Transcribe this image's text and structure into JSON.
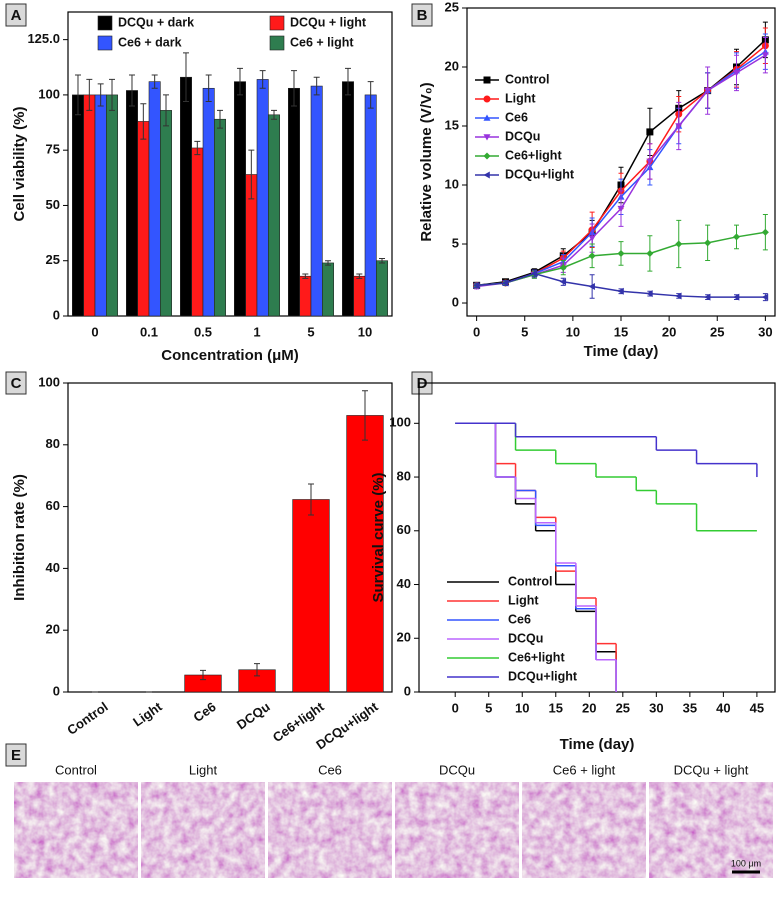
{
  "chart_data": [
    {
      "panel_label": "A",
      "type": "bar",
      "xlabel": "Concentration (μM)",
      "ylabel": "Cell viability (%)",
      "categories": [
        "0",
        "0.1",
        "0.5",
        "1",
        "5",
        "10"
      ],
      "series": [
        {
          "name": "DCQu + dark",
          "color": "#000000",
          "values": [
            100,
            102,
            108,
            106,
            103,
            106
          ],
          "errors": [
            9,
            7,
            11,
            6,
            8,
            6
          ]
        },
        {
          "name": "DCQu + light",
          "color": "#ff1a1a",
          "values": [
            100,
            88,
            76,
            64,
            18,
            18
          ],
          "errors": [
            7,
            8,
            3,
            11,
            1,
            1
          ]
        },
        {
          "name": "Ce6 + dark",
          "color": "#3355ff",
          "values": [
            100,
            106,
            103,
            107,
            104,
            100
          ],
          "errors": [
            5,
            3,
            6,
            4,
            4,
            6
          ]
        },
        {
          "name": "Ce6 + light",
          "color": "#2e7d4f",
          "values": [
            100,
            93,
            89,
            91,
            24,
            25
          ],
          "errors": [
            7,
            7,
            4,
            2,
            1,
            1
          ]
        }
      ],
      "ylim": [
        0,
        137.5
      ],
      "yticks": [
        0,
        25,
        50,
        75,
        100,
        {
          "value": 125,
          "label": "125.0"
        }
      ],
      "legend": "upper center"
    },
    {
      "panel_label": "B",
      "type": "line",
      "xlabel": "Time (day)",
      "ylabel": "Relative volume (V/V₀)",
      "x": [
        0,
        3,
        6,
        9,
        12,
        15,
        18,
        21,
        24,
        27,
        30
      ],
      "series": [
        {
          "name": "Control",
          "color": "#000000",
          "marker": "square",
          "values": [
            1.5,
            1.8,
            2.6,
            4,
            6,
            10,
            14.5,
            16.5,
            18,
            20,
            22.3
          ],
          "errors": [
            0.2,
            0.2,
            0.3,
            0.6,
            1,
            1.5,
            2,
            1.5,
            1.5,
            1.5,
            1.5
          ]
        },
        {
          "name": "Light",
          "color": "#ff1a1a",
          "marker": "circle",
          "values": [
            1.5,
            1.7,
            2.5,
            3.8,
            6.2,
            9.5,
            12,
            16,
            18,
            19.8,
            21.8
          ],
          "errors": [
            0.2,
            0.2,
            0.3,
            0.6,
            1.5,
            1.5,
            1.5,
            1.5,
            1.5,
            1.5,
            1.5
          ]
        },
        {
          "name": "Ce6",
          "color": "#3355ff",
          "marker": "triangle-up",
          "values": [
            1.5,
            1.7,
            2.5,
            3.5,
            6,
            9,
            11.5,
            15,
            18,
            19.7,
            21.3
          ],
          "errors": [
            0.2,
            0.2,
            0.3,
            0.6,
            1.2,
            1.5,
            1.5,
            1.5,
            1.5,
            1.5,
            1.5
          ]
        },
        {
          "name": "DCQu",
          "color": "#9933dd",
          "marker": "triangle-down",
          "values": [
            1.4,
            1.7,
            2.4,
            3.2,
            5.5,
            8,
            12,
            15,
            18,
            19.5,
            21
          ],
          "errors": [
            0.2,
            0.2,
            0.3,
            0.6,
            1.2,
            1.5,
            1.5,
            2,
            2,
            1.5,
            1.5
          ]
        },
        {
          "name": "Ce6+light",
          "color": "#33aa33",
          "marker": "diamond",
          "values": [
            1.5,
            1.7,
            2.4,
            3,
            4,
            4.2,
            4.2,
            5,
            5.1,
            5.6,
            6
          ],
          "errors": [
            0.2,
            0.2,
            0.3,
            0.6,
            1,
            1,
            1.5,
            2,
            1.5,
            1,
            1.5
          ]
        },
        {
          "name": "DCQu+light",
          "color": "#3333aa",
          "marker": "triangle-left",
          "values": [
            1.5,
            1.7,
            2.5,
            1.8,
            1.4,
            1,
            0.8,
            0.6,
            0.5,
            0.5,
            0.5
          ],
          "errors": [
            0.2,
            0.2,
            0.3,
            0.3,
            1,
            0.2,
            0.2,
            0.2,
            0.2,
            0.2,
            0.3
          ]
        }
      ],
      "xlim": [
        -1,
        31
      ],
      "xticks": [
        0,
        5,
        10,
        15,
        20,
        25,
        30
      ],
      "ylim": [
        -1.1,
        25
      ],
      "yticks": [
        0,
        5,
        10,
        15,
        20,
        25
      ],
      "legend": "upper left"
    },
    {
      "panel_label": "C",
      "type": "bar",
      "ylabel": "Inhibition rate (%)",
      "categories": [
        "Control",
        "Light",
        "Ce6",
        "DCQu",
        "Ce6+light",
        "DCQu+light"
      ],
      "values": [
        0,
        0,
        5.5,
        7.2,
        62.3,
        89.5
      ],
      "errors": [
        0,
        0,
        1.5,
        2,
        5,
        8
      ],
      "color": "#ff0000",
      "ylim": [
        0,
        100
      ],
      "yticks": [
        0,
        20,
        40,
        60,
        80,
        100
      ]
    },
    {
      "panel_label": "D",
      "type": "step",
      "xlabel": "Time (day)",
      "ylabel": "Survival curve (%)",
      "series": [
        {
          "name": "Control",
          "color": "#000000",
          "x": [
            0,
            6,
            9,
            12,
            15,
            18,
            21,
            24
          ],
          "values": [
            100,
            80,
            70,
            60,
            40,
            30,
            15,
            0
          ]
        },
        {
          "name": "Light",
          "color": "#ff3333",
          "x": [
            0,
            6,
            9,
            12,
            15,
            18,
            21,
            24
          ],
          "values": [
            100,
            85,
            75,
            65,
            45,
            35,
            18,
            0
          ]
        },
        {
          "name": "Ce6",
          "color": "#3355ff",
          "x": [
            0,
            6,
            9,
            12,
            15,
            18,
            21,
            24
          ],
          "values": [
            100,
            80,
            75,
            62,
            47,
            31,
            12,
            0
          ]
        },
        {
          "name": "DCQu",
          "color": "#bb66ff",
          "x": [
            0,
            6,
            9,
            12,
            15,
            18,
            21,
            24
          ],
          "values": [
            100,
            80,
            72,
            63,
            48,
            32,
            12,
            0
          ]
        },
        {
          "name": "Ce6+light",
          "color": "#33cc33",
          "x": [
            0,
            9,
            15,
            21,
            27,
            30,
            36,
            45
          ],
          "values": [
            100,
            90,
            85,
            80,
            75,
            70,
            60,
            60
          ]
        },
        {
          "name": "DCQu+light",
          "color": "#4433cc",
          "x": [
            0,
            9,
            30,
            36,
            45
          ],
          "values": [
            100,
            95,
            90,
            85,
            80
          ]
        }
      ],
      "xlim": [
        -5.4,
        47.7
      ],
      "xticks": [
        0,
        5,
        10,
        15,
        20,
        25,
        30,
        35,
        40,
        45
      ],
      "ylim": [
        0,
        115
      ],
      "yticks": [
        0,
        20,
        40,
        60,
        80,
        100
      ],
      "legend": "lower left"
    }
  ],
  "image_panel": {
    "label": "E",
    "titles": [
      "Control",
      "Light",
      "Ce6",
      "DCQu",
      "Ce6 + light",
      "DCQu + light"
    ],
    "scale_bar": "100 μm"
  }
}
